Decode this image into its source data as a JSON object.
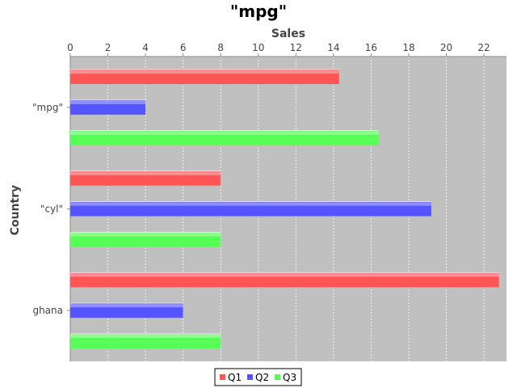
{
  "chart_data": {
    "type": "bar",
    "orientation": "horizontal",
    "title": "\"mpg\"",
    "xlabel": "Sales",
    "ylabel": "Country",
    "categories": [
      "\"mpg\"",
      "\"cyl\"",
      "ghana"
    ],
    "series": [
      {
        "name": "Q1",
        "color": "#ff5555",
        "values": [
          14.3,
          8.0,
          22.8
        ]
      },
      {
        "name": "Q2",
        "color": "#5555ff",
        "values": [
          4.0,
          19.2,
          6.0
        ]
      },
      {
        "name": "Q3",
        "color": "#55ff55",
        "values": [
          16.4,
          8.0,
          8.0
        ]
      }
    ],
    "xlim": [
      0,
      23.2
    ],
    "xticks": [
      0,
      2,
      4,
      6,
      8,
      10,
      12,
      14,
      16,
      18,
      20,
      22
    ],
    "grid": true,
    "legend_position": "bottom",
    "plot_background": "#c0c0c0"
  }
}
